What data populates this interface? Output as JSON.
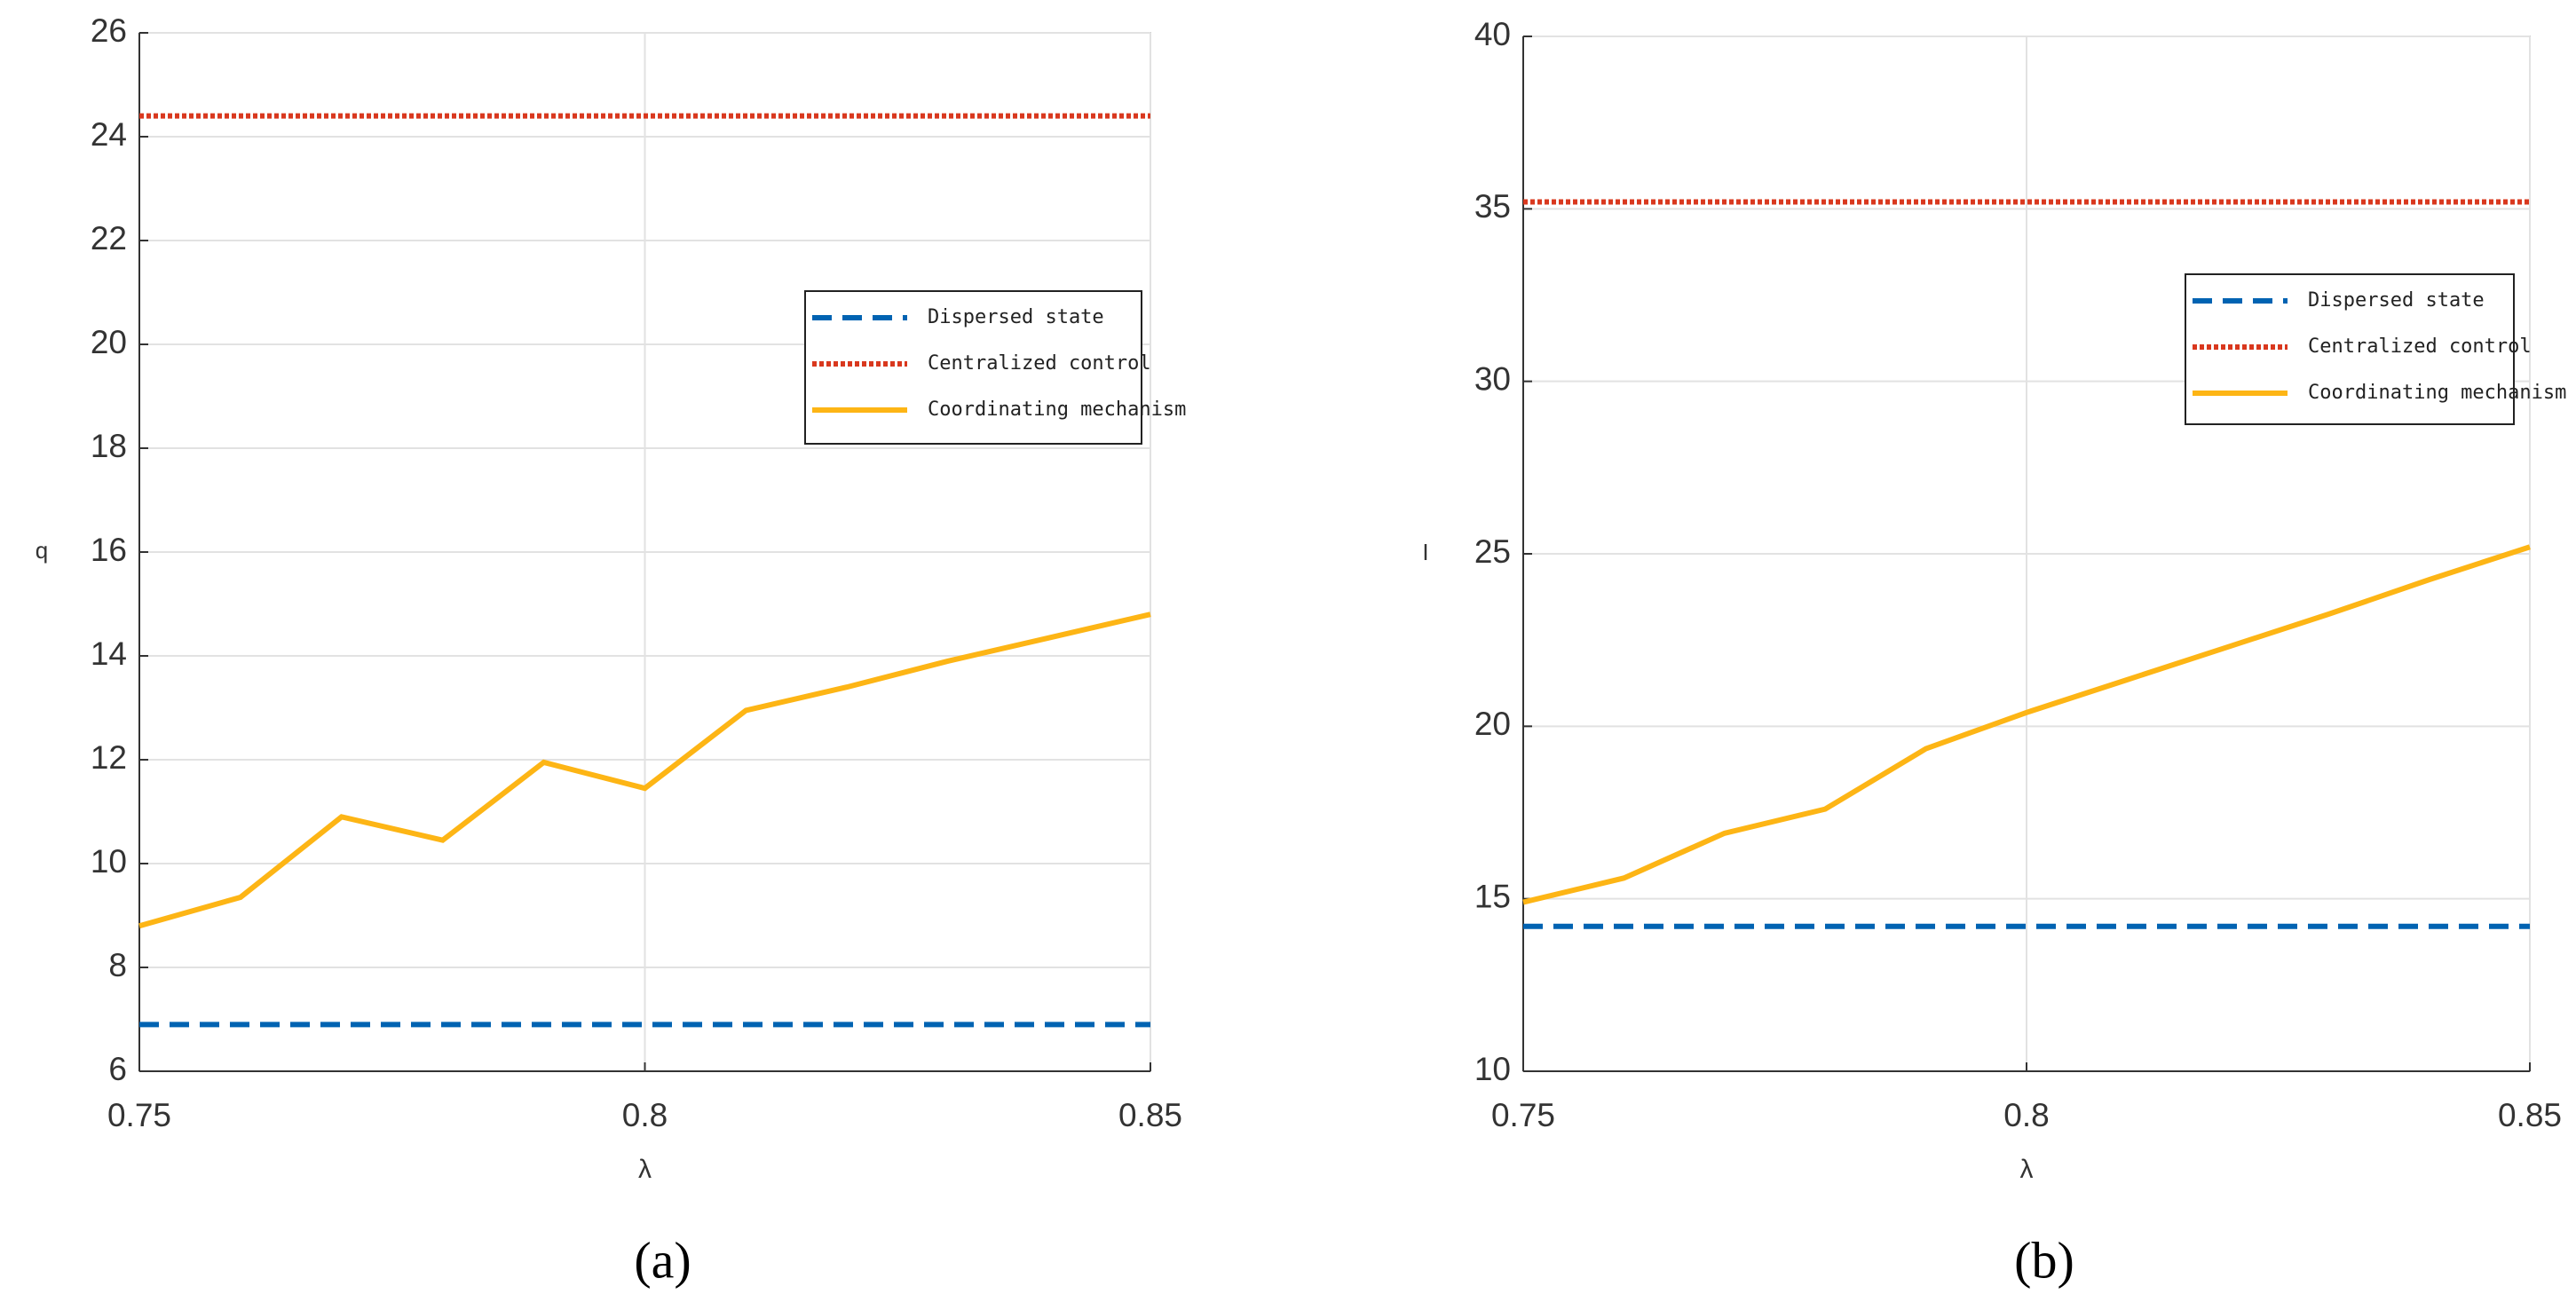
{
  "chart_data": [
    {
      "type": "line",
      "caption": "(a)",
      "xlabel": "λ",
      "ylabel": "q",
      "x": [
        0.75,
        0.76,
        0.77,
        0.78,
        0.79,
        0.8,
        0.81,
        0.82,
        0.83,
        0.84,
        0.85
      ],
      "xlim": [
        0.75,
        0.85
      ],
      "xticks": [
        0.75,
        0.8,
        0.85
      ],
      "ylim": [
        6,
        26
      ],
      "yticks": [
        6,
        8,
        10,
        12,
        14,
        16,
        18,
        20,
        22,
        24,
        26
      ],
      "grid": true,
      "legend": "right",
      "series": [
        {
          "name": "Dispersed state",
          "color": "#0063b2",
          "dash": "dashed",
          "values": [
            6.9,
            6.9,
            6.9,
            6.9,
            6.9,
            6.9,
            6.9,
            6.9,
            6.9,
            6.9,
            6.9
          ]
        },
        {
          "name": "Centralized control",
          "color": "#d9381e",
          "dash": "dotted",
          "values": [
            24.4,
            24.4,
            24.4,
            24.4,
            24.4,
            24.4,
            24.4,
            24.4,
            24.4,
            24.4,
            24.4
          ]
        },
        {
          "name": "Coordinating mechanism",
          "color": "#fdb515",
          "dash": "solid",
          "values": [
            8.8,
            9.35,
            10.9,
            10.45,
            11.95,
            11.45,
            12.95,
            13.4,
            13.9,
            14.35,
            14.8
          ]
        }
      ]
    },
    {
      "type": "line",
      "caption": "(b)",
      "xlabel": "λ",
      "ylabel": "I",
      "x": [
        0.75,
        0.76,
        0.77,
        0.78,
        0.79,
        0.8,
        0.81,
        0.82,
        0.83,
        0.84,
        0.85
      ],
      "xlim": [
        0.75,
        0.85
      ],
      "xticks": [
        0.75,
        0.8,
        0.85
      ],
      "ylim": [
        10,
        40
      ],
      "yticks": [
        10,
        15,
        20,
        25,
        30,
        35,
        40
      ],
      "grid": true,
      "legend": "right",
      "series": [
        {
          "name": "Dispersed state",
          "color": "#0063b2",
          "dash": "dashed",
          "values": [
            14.2,
            14.2,
            14.2,
            14.2,
            14.2,
            14.2,
            14.2,
            14.2,
            14.2,
            14.2,
            14.2
          ]
        },
        {
          "name": "Centralized control",
          "color": "#d9381e",
          "dash": "dotted",
          "values": [
            35.2,
            35.2,
            35.2,
            35.2,
            35.2,
            35.2,
            35.2,
            35.2,
            35.2,
            35.2,
            35.2
          ]
        },
        {
          "name": "Coordinating mechanism",
          "color": "#fdb515",
          "dash": "solid",
          "values": [
            14.9,
            15.6,
            16.9,
            17.6,
            19.35,
            20.4,
            21.35,
            22.3,
            23.25,
            24.25,
            25.2
          ]
        }
      ]
    }
  ]
}
